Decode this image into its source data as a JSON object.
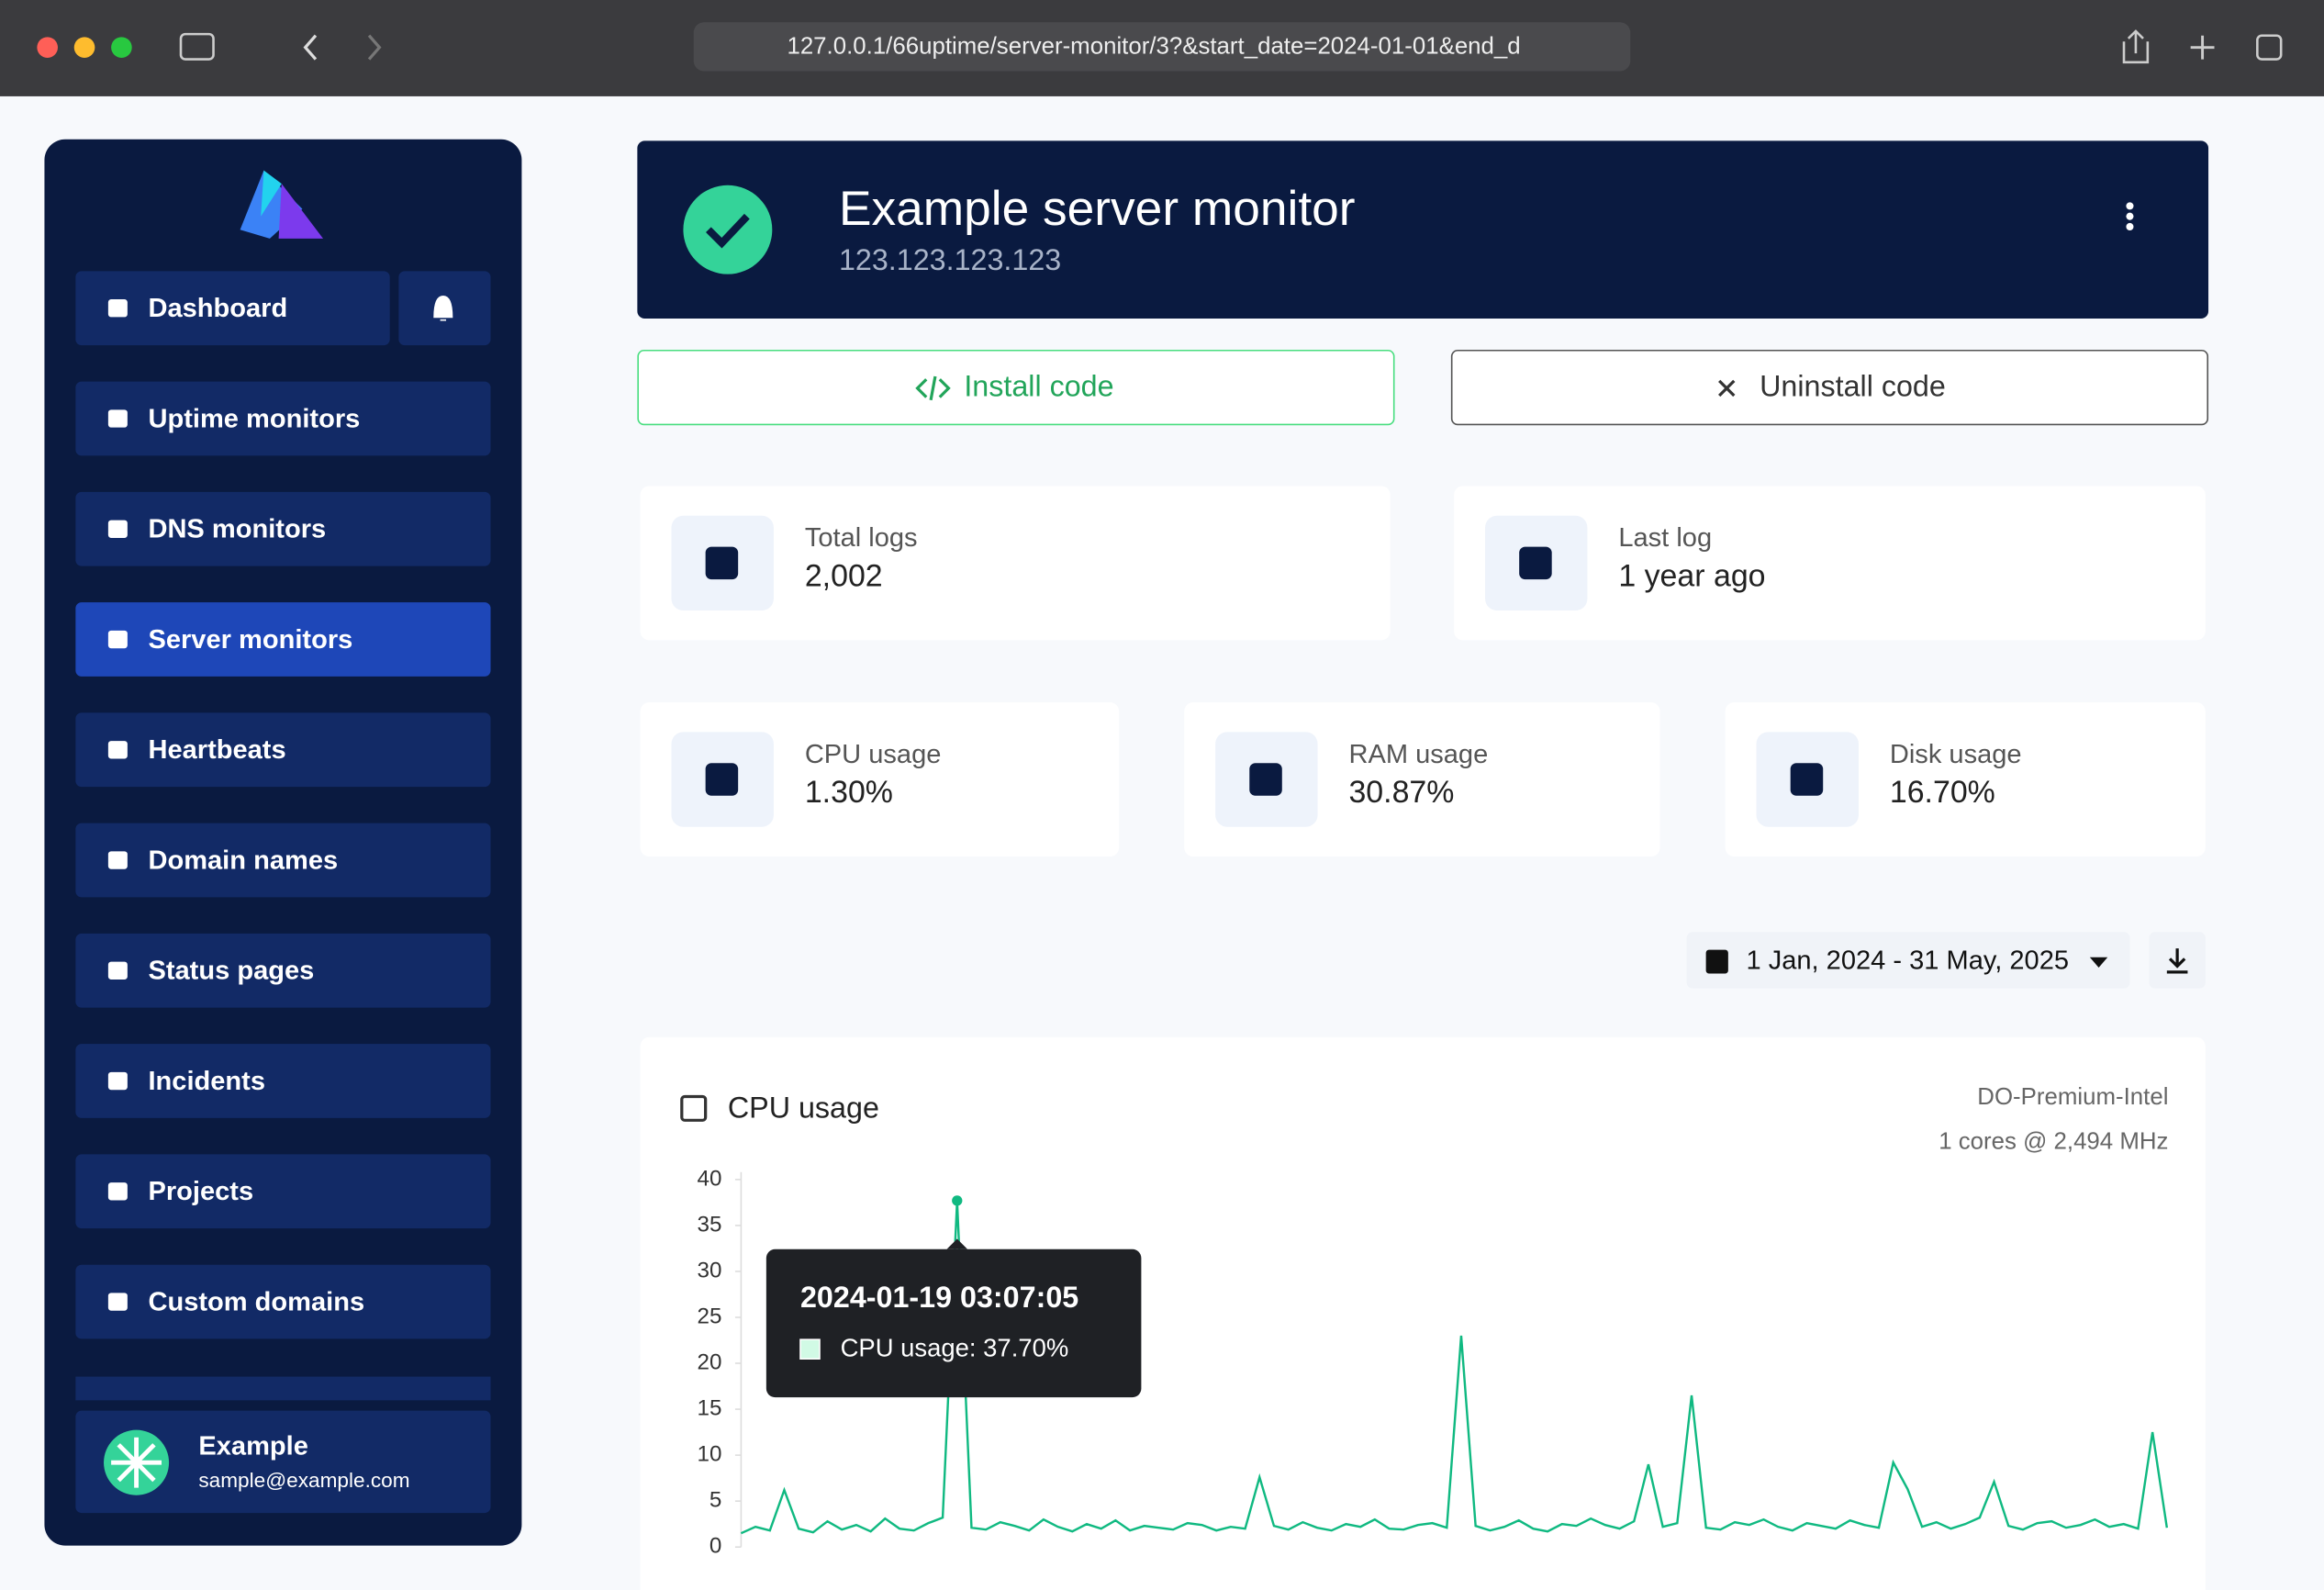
{
  "browser": {
    "url": "127.0.0.1/66uptime/server-monitor/3?&start_date=2024-01-01&end_d"
  },
  "sidebar": {
    "nav": [
      "Dashboard",
      "Uptime monitors",
      "DNS monitors",
      "Server monitors",
      "Heartbeats",
      "Domain names",
      "Status pages",
      "Incidents",
      "Projects",
      "Custom domains"
    ],
    "user": {
      "name": "Example",
      "email": "sample@example.com"
    }
  },
  "header": {
    "title": "Example server monitor",
    "subtitle": "123.123.123.123"
  },
  "buttons": {
    "install": "Install code",
    "uninstall": "Uninstall code",
    "date_range": "1 Jan, 2024 - 31 May, 2025"
  },
  "stats": [
    {
      "label": "Total logs",
      "value": "2,002"
    },
    {
      "label": "Last log",
      "value": "1 year ago"
    },
    {
      "label": "CPU usage",
      "value": "1.30%"
    },
    {
      "label": "RAM usage",
      "value": "30.87%"
    },
    {
      "label": "Disk usage",
      "value": "16.70%"
    }
  ],
  "chart_data": {
    "type": "line",
    "title": "CPU usage",
    "specs": [
      "DO-Premium-Intel",
      "1 cores @ 2,494 MHz"
    ],
    "ylim": [
      0,
      40
    ],
    "yticks": [
      0,
      5,
      10,
      15,
      20,
      25,
      30,
      35,
      40
    ],
    "tooltip": {
      "date": "2024-01-19 03:07:05",
      "text": "CPU usage: 37.70%"
    },
    "series": [
      {
        "name": "CPU usage",
        "color": "#10b981",
        "values": [
          1.5,
          2.2,
          1.8,
          6.2,
          2.0,
          1.6,
          2.8,
          1.9,
          2.4,
          1.7,
          3.1,
          2.0,
          1.8,
          2.6,
          3.2,
          37.7,
          2.1,
          1.9,
          2.7,
          2.3,
          1.8,
          3.0,
          2.2,
          1.7,
          2.5,
          2.0,
          2.9,
          1.8,
          2.3,
          2.1,
          1.9,
          2.6,
          2.4,
          1.8,
          2.2,
          2.0,
          7.6,
          2.3,
          1.9,
          2.7,
          2.1,
          1.8,
          2.5,
          2.2,
          3.0,
          2.0,
          1.9,
          2.4,
          2.6,
          2.1,
          23.0,
          2.3,
          1.8,
          2.2,
          2.9,
          2.0,
          1.7,
          2.5,
          2.3,
          3.1,
          2.4,
          2.0,
          2.8,
          9.0,
          2.2,
          2.6,
          16.5,
          2.1,
          1.9,
          2.7,
          2.4,
          3.0,
          2.2,
          1.8,
          2.6,
          2.3,
          2.0,
          2.9,
          2.4,
          2.1,
          9.2,
          6.3,
          2.2,
          2.7,
          2.0,
          2.5,
          3.2,
          7.1,
          2.3,
          1.9,
          2.6,
          2.8,
          2.1,
          2.4,
          3.0,
          2.2,
          2.5,
          2.0,
          12.5,
          2.1
        ]
      }
    ]
  }
}
